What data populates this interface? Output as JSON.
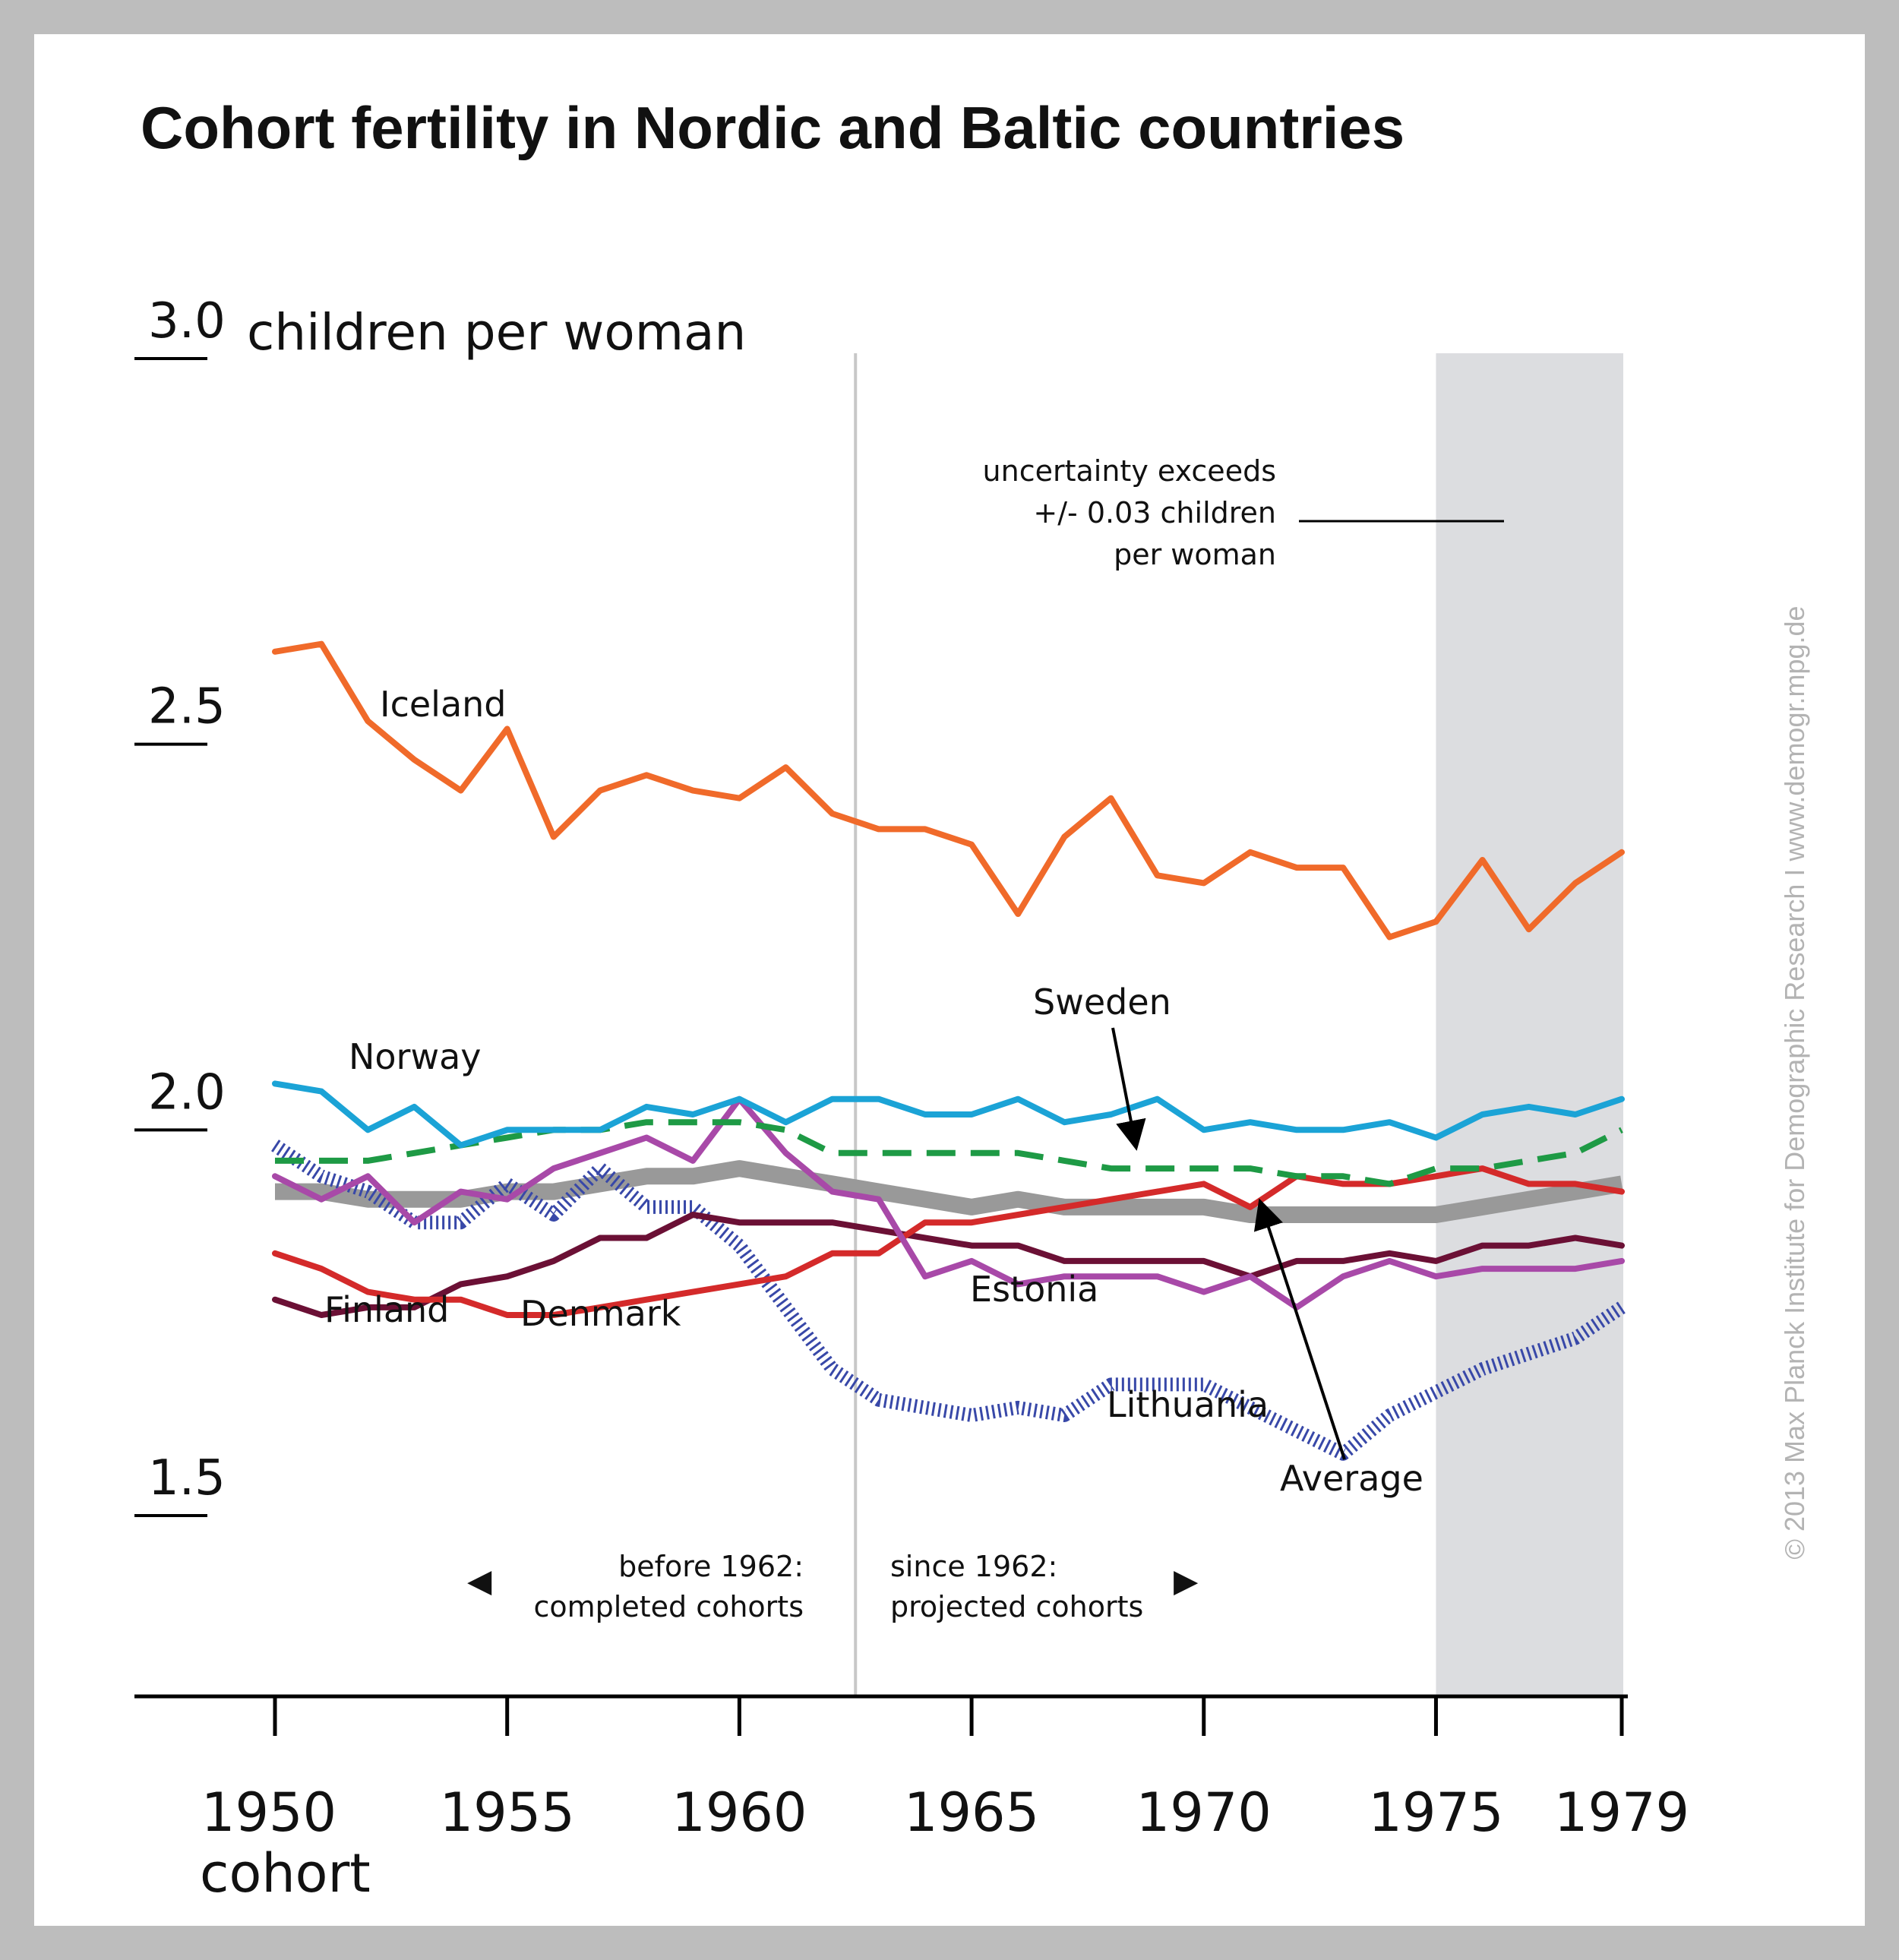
{
  "chart_data": {
    "type": "line",
    "title": "Cohort fertility in Nordic and Baltic countries",
    "ylabel": "children per woman",
    "xlabel": "cohort",
    "xlim": [
      1947,
      1979
    ],
    "ylim": [
      1.25,
      3.0
    ],
    "y_ticks": [
      {
        "value": 1.5,
        "label": "1.5"
      },
      {
        "value": 2.0,
        "label": "2.0"
      },
      {
        "value": 2.5,
        "label": "2.5"
      },
      {
        "value": 3.0,
        "label": "3.0"
      }
    ],
    "x_ticks": [
      {
        "value": 1950,
        "label": "1950"
      },
      {
        "value": 1955,
        "label": "1955"
      },
      {
        "value": 1960,
        "label": "1960"
      },
      {
        "value": 1965,
        "label": "1965"
      },
      {
        "value": 1970,
        "label": "1970"
      },
      {
        "value": 1975,
        "label": "1975"
      },
      {
        "value": 1979,
        "label": "1979"
      }
    ],
    "x": [
      1950,
      1951,
      1952,
      1953,
      1954,
      1955,
      1956,
      1957,
      1958,
      1959,
      1960,
      1961,
      1962,
      1963,
      1964,
      1965,
      1966,
      1967,
      1968,
      1969,
      1970,
      1971,
      1972,
      1973,
      1974,
      1975,
      1976,
      1977,
      1978,
      1979
    ],
    "series": [
      {
        "name": "Iceland",
        "color": "#f06a2a",
        "style": "solid",
        "values": [
          2.62,
          2.63,
          2.53,
          2.48,
          2.44,
          2.52,
          2.38,
          2.44,
          2.46,
          2.44,
          2.43,
          2.47,
          2.41,
          2.39,
          2.39,
          2.37,
          2.28,
          2.38,
          2.43,
          2.33,
          2.32,
          2.36,
          2.34,
          2.34,
          2.25,
          2.27,
          2.35,
          2.26,
          2.32,
          2.36
        ]
      },
      {
        "name": "Norway",
        "color": "#1ba3d6",
        "style": "solid",
        "values": [
          2.06,
          2.05,
          2.0,
          2.03,
          1.98,
          2.0,
          2.0,
          2.0,
          2.03,
          2.02,
          2.04,
          2.01,
          2.04,
          2.04,
          2.02,
          2.02,
          2.04,
          2.01,
          2.02,
          2.04,
          2.0,
          2.01,
          2.0,
          2.0,
          2.01,
          1.99,
          2.02,
          2.03,
          2.02,
          2.04
        ]
      },
      {
        "name": "Sweden",
        "color": "#1e9a45",
        "style": "dashed",
        "values": [
          1.96,
          1.96,
          1.96,
          1.97,
          1.98,
          1.99,
          2.0,
          2.0,
          2.01,
          2.01,
          2.01,
          2.0,
          1.97,
          1.97,
          1.97,
          1.97,
          1.97,
          1.96,
          1.95,
          1.95,
          1.95,
          1.95,
          1.94,
          1.94,
          1.93,
          1.95,
          1.95,
          1.96,
          1.97,
          2.0
        ]
      },
      {
        "name": "Average",
        "color": "#999999",
        "style": "band",
        "values": [
          1.92,
          1.92,
          1.91,
          1.91,
          1.91,
          1.92,
          1.92,
          1.93,
          1.94,
          1.94,
          1.95,
          1.94,
          1.93,
          1.92,
          1.91,
          1.9,
          1.91,
          1.9,
          1.9,
          1.9,
          1.9,
          1.89,
          1.89,
          1.89,
          1.89,
          1.89,
          1.9,
          1.91,
          1.92,
          1.93
        ]
      },
      {
        "name": "Estonia",
        "color": "#a849a8",
        "style": "solid",
        "values": [
          1.94,
          1.91,
          1.94,
          1.88,
          1.92,
          1.91,
          1.95,
          1.97,
          1.99,
          1.96,
          2.04,
          1.97,
          1.92,
          1.91,
          1.81,
          1.83,
          1.8,
          1.81,
          1.81,
          1.81,
          1.79,
          1.81,
          1.77,
          1.81,
          1.83,
          1.81,
          1.82,
          1.82,
          1.82,
          1.83
        ]
      },
      {
        "name": "Denmark",
        "color": "#d42a2a",
        "style": "solid",
        "values": [
          1.84,
          1.82,
          1.79,
          1.78,
          1.78,
          1.76,
          1.76,
          1.77,
          1.78,
          1.79,
          1.8,
          1.81,
          1.84,
          1.84,
          1.88,
          1.88,
          1.89,
          1.9,
          1.91,
          1.92,
          1.93,
          1.9,
          1.94,
          1.93,
          1.93,
          1.94,
          1.95,
          1.93,
          1.93,
          1.92
        ]
      },
      {
        "name": "Finland",
        "color": "#6b1035",
        "style": "solid",
        "values": [
          1.78,
          1.76,
          1.77,
          1.77,
          1.8,
          1.81,
          1.83,
          1.86,
          1.86,
          1.89,
          1.88,
          1.88,
          1.88,
          1.87,
          1.86,
          1.85,
          1.85,
          1.83,
          1.83,
          1.83,
          1.83,
          1.81,
          1.83,
          1.83,
          1.84,
          1.83,
          1.85,
          1.85,
          1.86,
          1.85
        ]
      },
      {
        "name": "Lithuania",
        "color": "#3848a8",
        "style": "hatched",
        "values": [
          1.98,
          1.94,
          1.92,
          1.88,
          1.88,
          1.93,
          1.89,
          1.95,
          1.9,
          1.9,
          1.85,
          1.77,
          1.69,
          1.65,
          1.64,
          1.63,
          1.64,
          1.63,
          1.67,
          1.67,
          1.67,
          1.64,
          1.61,
          1.58,
          1.63,
          1.66,
          1.69,
          1.71,
          1.73,
          1.77
        ]
      }
    ]
  },
  "labels": {
    "y_unit": "children per woman",
    "iceland": "Iceland",
    "norway": "Norway",
    "sweden": "Sweden",
    "estonia": "Estonia",
    "finland": "Finland",
    "denmark": "Denmark",
    "lithuania": "Lithuania",
    "average": "Average",
    "uncertainty_line1": "uncertainty exceeds",
    "uncertainty_line2": "+/- 0.03 children",
    "uncertainty_line3": "per woman",
    "before_line1": "before 1962:",
    "before_line2": "completed cohorts",
    "since_line1": "since 1962:",
    "since_line2": "projected cohorts",
    "left_arrow": "◀",
    "right_arrow": "▶",
    "copyright": "© 2013 Max Planck Institute for Demographic Research I www.demogr.mpg.de"
  }
}
